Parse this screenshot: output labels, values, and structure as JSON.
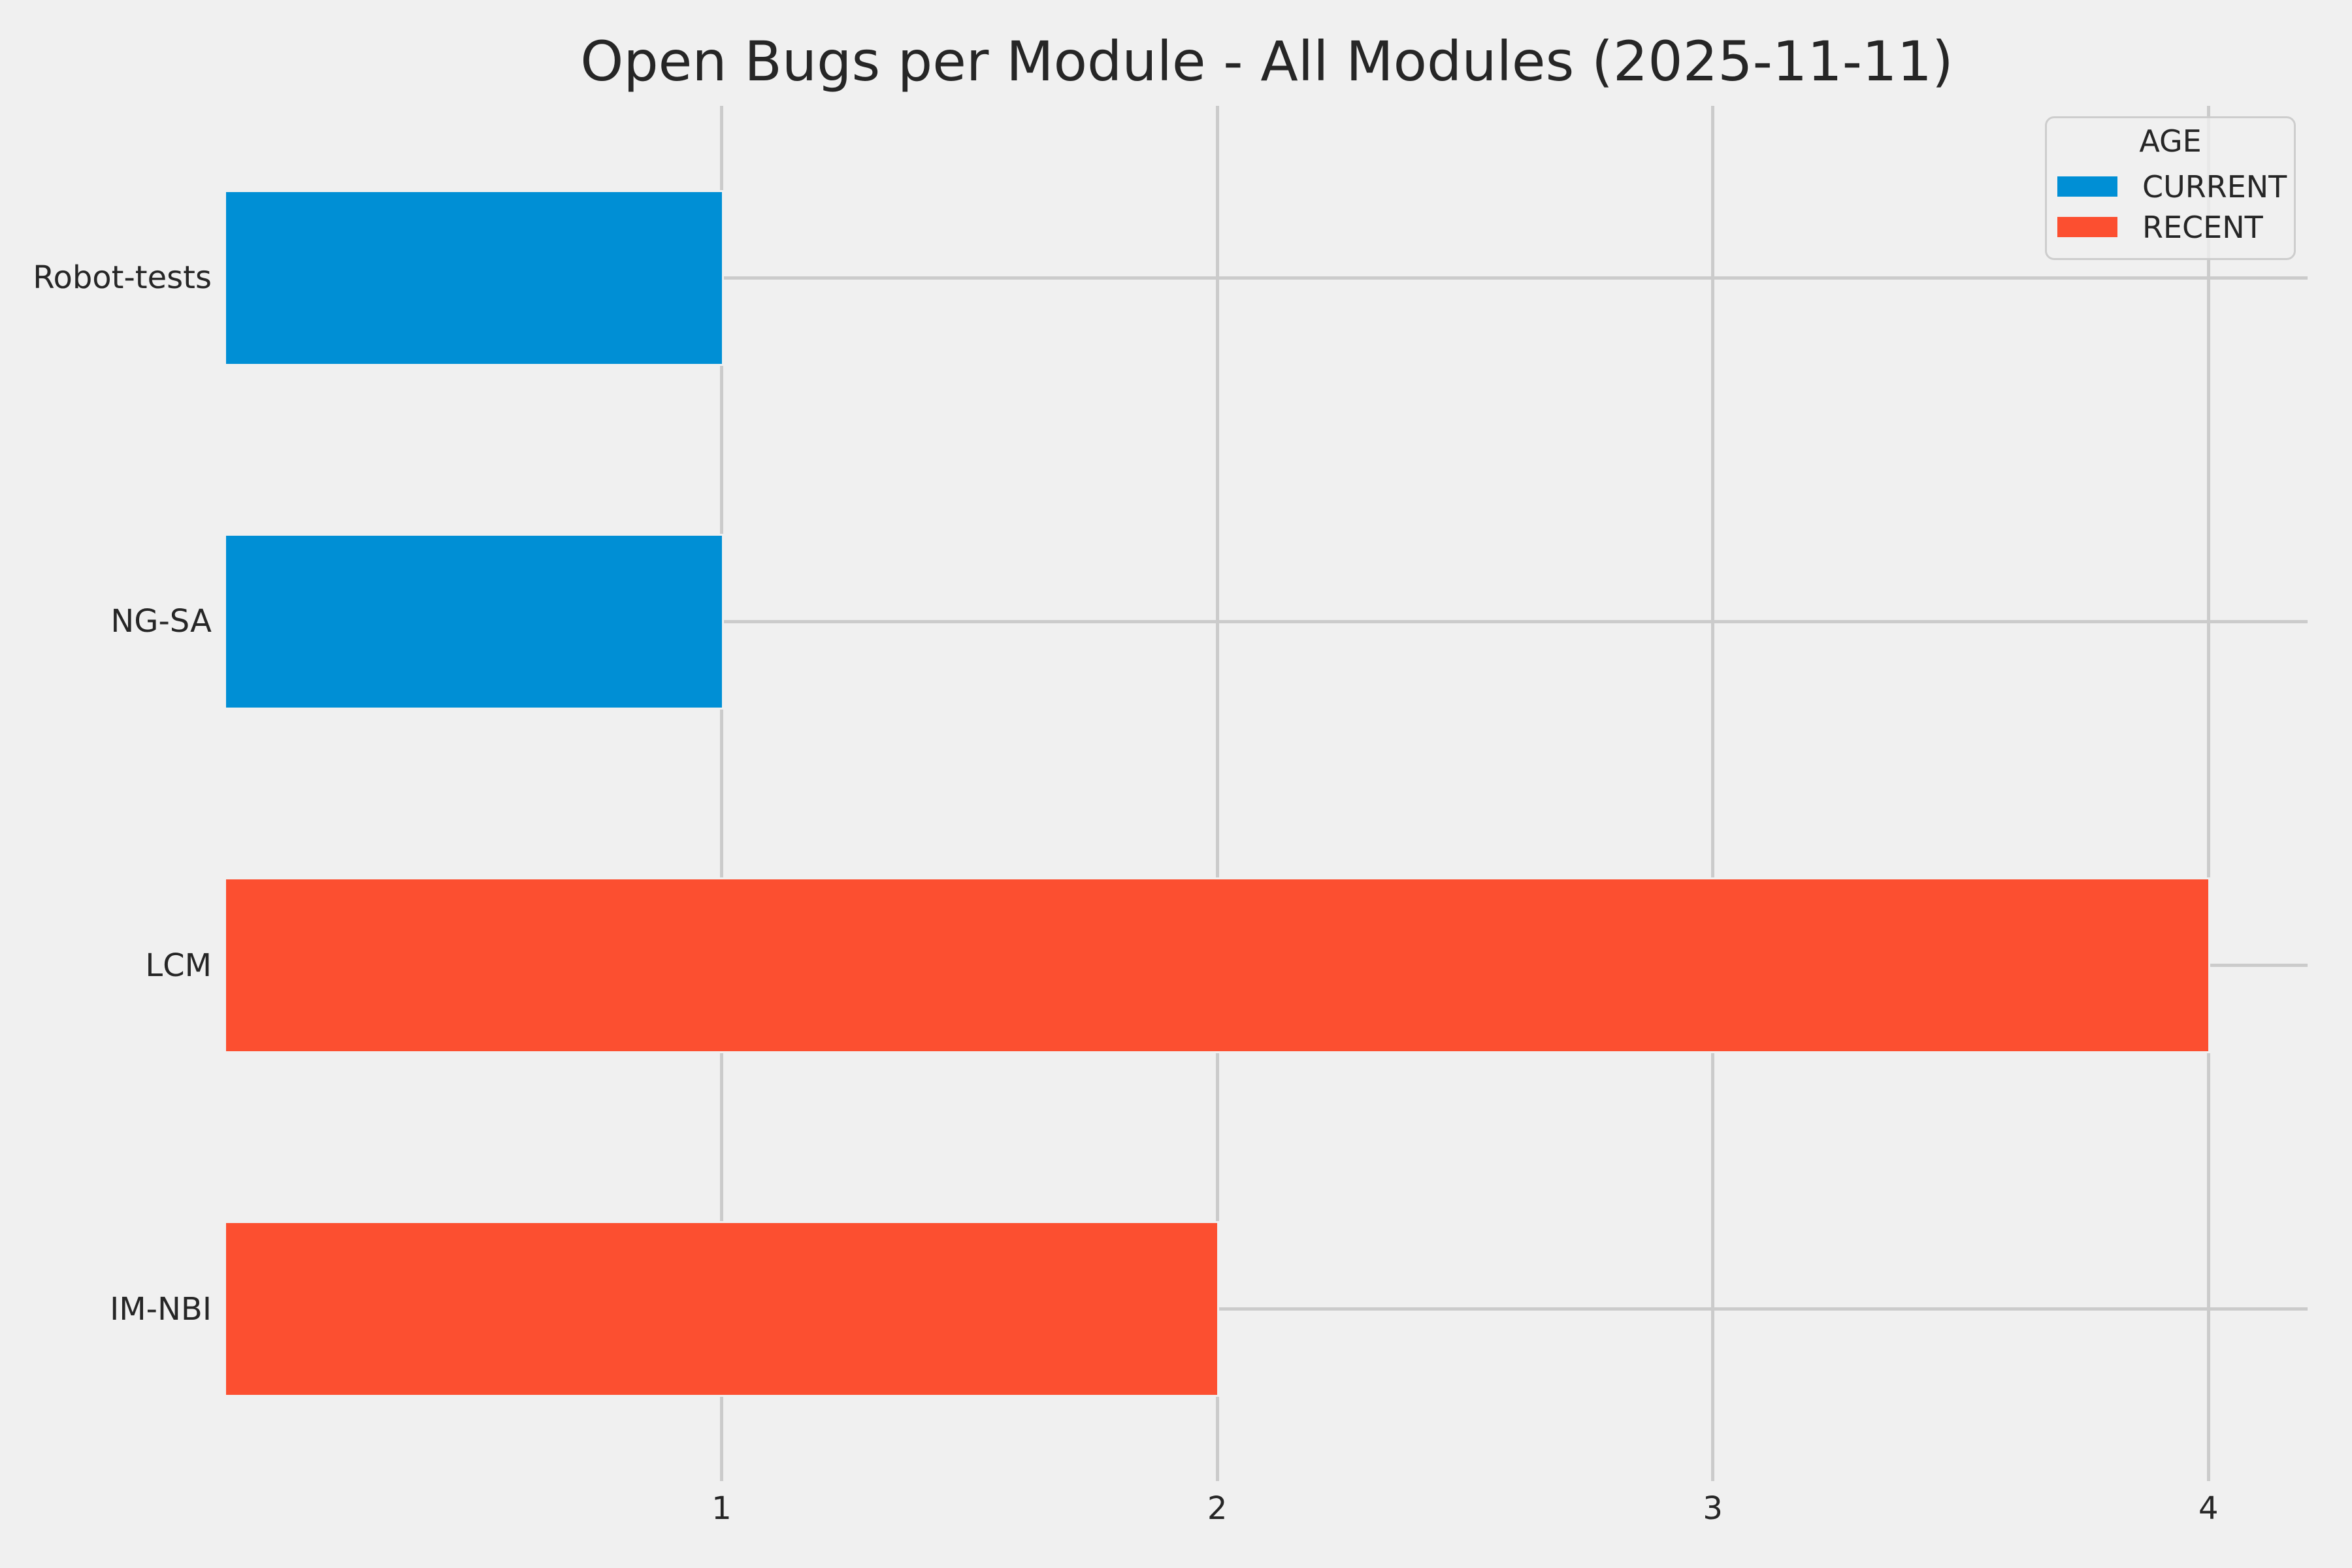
{
  "colors": {
    "background": "#f0f0f0",
    "grid": "#cbcbcb",
    "text": "#262626",
    "legend_face": "rgba(240,240,240,0.78)",
    "legend_edge": "#cdcdcd"
  },
  "chart_data": {
    "type": "bar",
    "orientation": "horizontal",
    "title": "Open Bugs per Module - All Modules (2025-11-11)",
    "categories": [
      "Robot-tests",
      "NG-SA",
      "LCM",
      "IM-NBI"
    ],
    "values": [
      1,
      1,
      4,
      2
    ],
    "groups": [
      "CURRENT",
      "CURRENT",
      "RECENT",
      "RECENT"
    ],
    "group_colors": {
      "CURRENT": "#008fd5",
      "RECENT": "#fc4f30"
    },
    "xlabel": "",
    "ylabel": "",
    "xticks": [
      1,
      2,
      3,
      4
    ],
    "xlim": [
      0,
      4.2
    ],
    "grid": true,
    "legend": {
      "title": "AGE",
      "position": "top-right",
      "entries": [
        {
          "label": "CURRENT",
          "color": "#008fd5"
        },
        {
          "label": "RECENT",
          "color": "#fc4f30"
        }
      ]
    }
  }
}
